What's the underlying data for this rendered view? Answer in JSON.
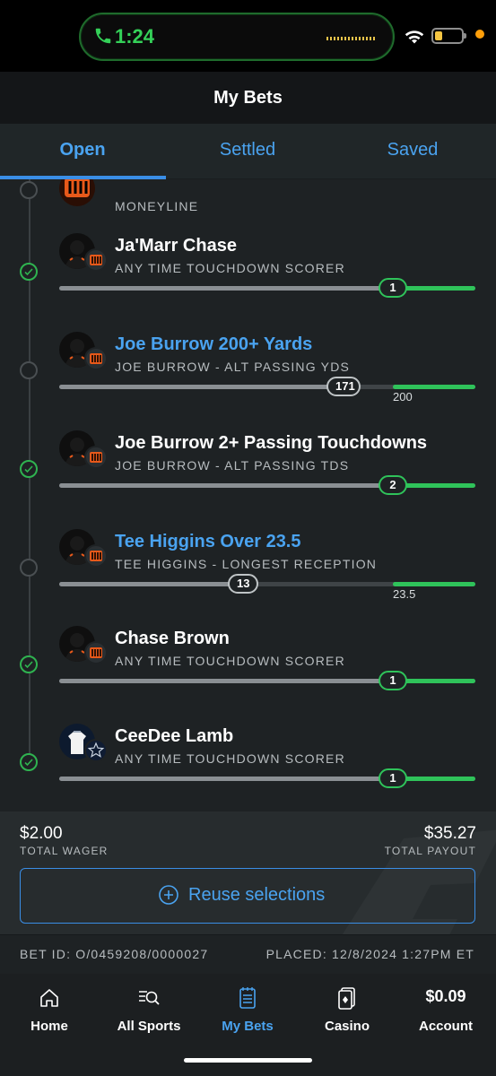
{
  "status_bar": {
    "time": "1:24"
  },
  "header": {
    "title": "My Bets"
  },
  "tabs": [
    {
      "label": "Open",
      "active": true
    },
    {
      "label": "Settled",
      "active": false
    },
    {
      "label": "Saved",
      "active": false
    }
  ],
  "partial_leg": {
    "market": "MONEYLINE"
  },
  "legs": [
    {
      "name": "Ja'Marr Chase",
      "market": "ANY TIME TOUCHDOWN SCORER",
      "status": "won",
      "current": "1",
      "target": "",
      "progress_fraction": 1.0,
      "team": "bengals"
    },
    {
      "name": "Joe Burrow 200+ Yards",
      "market": "JOE BURROW - ALT PASSING YDS",
      "status": "open",
      "current": "171",
      "target": "200",
      "progress_fraction": 0.855,
      "team": "bengals"
    },
    {
      "name": "Joe Burrow 2+ Passing Touchdowns",
      "market": "JOE BURROW - ALT PASSING TDS",
      "status": "won",
      "current": "2",
      "target": "",
      "progress_fraction": 1.0,
      "team": "bengals"
    },
    {
      "name": "Tee Higgins Over 23.5",
      "market": "TEE HIGGINS - LONGEST RECEPTION",
      "status": "open",
      "current": "13",
      "target": "23.5",
      "progress_fraction": 0.553,
      "team": "bengals"
    },
    {
      "name": "Chase Brown",
      "market": "ANY TIME TOUCHDOWN SCORER",
      "status": "won",
      "current": "1",
      "target": "",
      "progress_fraction": 1.0,
      "team": "bengals"
    },
    {
      "name": "CeeDee Lamb",
      "market": "ANY TIME TOUCHDOWN SCORER",
      "status": "won",
      "current": "1",
      "target": "",
      "progress_fraction": 1.0,
      "team": "cowboys"
    }
  ],
  "summary": {
    "wager": "$2.00",
    "wager_label": "TOTAL WAGER",
    "payout": "$35.27",
    "payout_label": "TOTAL PAYOUT",
    "reuse_label": "Reuse selections"
  },
  "bet_info": {
    "id": "BET ID: O/0459208/0000027",
    "placed": "PLACED: 12/8/2024 1:27PM ET"
  },
  "nav": {
    "home": "Home",
    "all_sports": "All Sports",
    "my_bets": "My Bets",
    "casino": "Casino",
    "account": "Account",
    "balance": "$0.09"
  },
  "colors": {
    "accent_blue": "#4aa3f0",
    "win_green": "#2fc35a",
    "background": "#1e2224"
  }
}
